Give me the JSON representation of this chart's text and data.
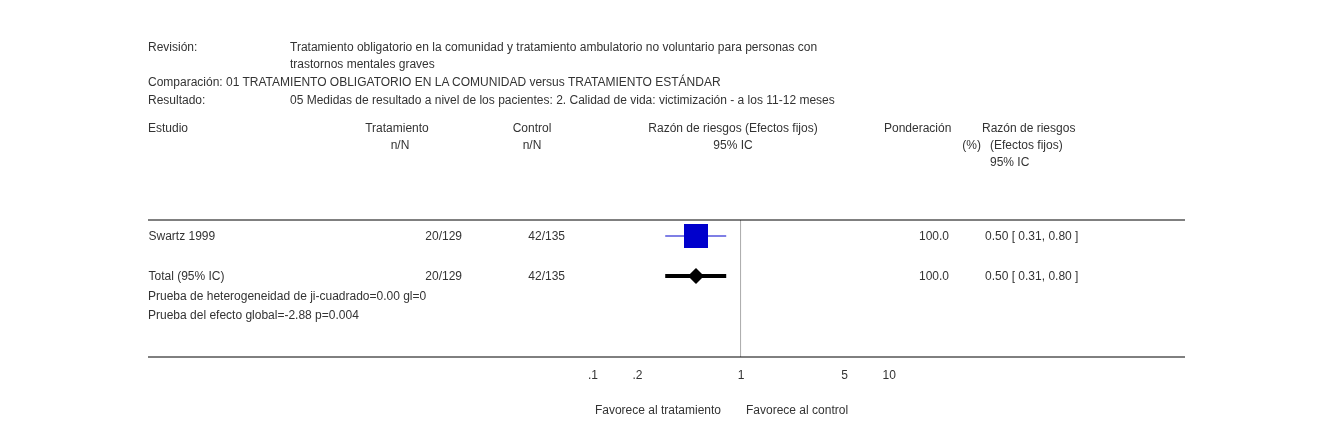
{
  "chart_data": {
    "type": "scatter",
    "orientation": "horizontal",
    "categories": [
      "Swartz 1999",
      "Total (95% IC)"
    ],
    "series": [
      {
        "color": "#0000cc",
        "marker": "square",
        "values": [
          0.5,
          null
        ],
        "errors": [
          [
            0.31,
            0.8
          ],
          null
        ]
      },
      {
        "color": "#000000",
        "marker": "diamond",
        "values": [
          null,
          0.5
        ],
        "errors": [
          null,
          [
            0.31,
            0.8
          ]
        ]
      }
    ],
    "log": "x",
    "xlim": [
      0.0001,
      1000
    ],
    "xticks": [
      {
        "value": 0.1,
        "label": ".1"
      },
      {
        "value": 0.2,
        "label": ".2"
      },
      1,
      5,
      10
    ],
    "ref_lines": [
      {
        "axis": "x",
        "value": 1,
        "color": "#aaaaaa"
      }
    ],
    "annotations": [
      "Revisión:",
      "Tratamiento obligatorio en la comunidad y tratamiento ambulatorio no voluntario para personas con",
      "trastornos mentales graves",
      "Comparación: 01 TRATAMIENTO OBLIGATORIO EN LA COMUNIDAD versus TRATAMIENTO ESTÁNDAR",
      "Resultado:",
      "05 Medidas de resultado a nivel de los pacientes: 2. Calidad de vida: victimización - a los 11-12 meses",
      "Estudio",
      "Tratamiento",
      "n/N",
      "Control",
      "n/N",
      "Razón de riesgos (Efectos fijos)",
      "95% IC",
      "Ponderación",
      "(%)",
      "Razón de riesgos",
      "(Efectos fijos)",
      "95% IC",
      "20/129",
      "42/135",
      "100.0",
      "0.50 [ 0.31, 0.80 ]",
      "20/129",
      "42/135",
      "100.0",
      "0.50 [ 0.31, 0.80 ]",
      "Prueba de heterogeneidad de ji-cuadrado=0.00 gl=0",
      "Prueba del efecto global=-2.88 p=0.004",
      "Favorece al tratamiento",
      "Favorece al control"
    ]
  }
}
